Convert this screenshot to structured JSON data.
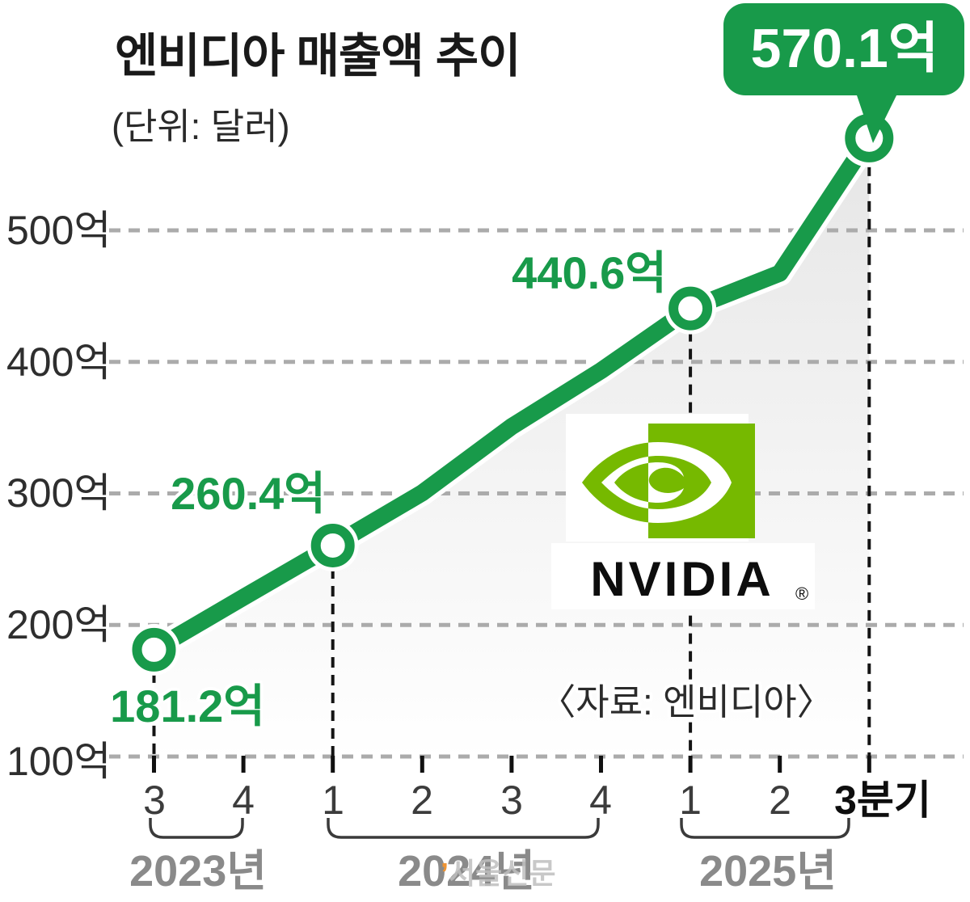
{
  "header": {
    "title": "엔비디아 매출액 추이",
    "unit_note": "(단위: 달러)"
  },
  "source_note": "〈자료: 엔비디아〉",
  "watermark": {
    "tick": "’",
    "text": "서울신문"
  },
  "logo": {
    "wordmark": "NVIDIA",
    "registered": "®"
  },
  "colors": {
    "line_green": "#189a4a",
    "nvidia_green": "#76b900",
    "grid_gray": "#ababab",
    "area_fill_top": "#e6e6e6",
    "year_label_gray": "#8a8a8a"
  },
  "chart_data": {
    "type": "line",
    "title": "엔비디아 매출액 추이",
    "unit": "억 달러",
    "x_labels": [
      "3",
      "4",
      "1",
      "2",
      "3",
      "4",
      "1",
      "2",
      "3분기"
    ],
    "x_quarters": [
      "2023 Q3",
      "2023 Q4",
      "2024 Q1",
      "2024 Q2",
      "2024 Q3",
      "2024 Q4",
      "2025 Q1",
      "2025 Q2",
      "2025 Q3"
    ],
    "year_groups": [
      {
        "label": "2023년",
        "quarters": [
          "3",
          "4"
        ]
      },
      {
        "label": "2024년",
        "quarters": [
          "1",
          "2",
          "3",
          "4"
        ]
      },
      {
        "label": "2025년",
        "quarters": [
          "1",
          "2",
          "3"
        ]
      }
    ],
    "series": [
      {
        "name": "매출액",
        "values": [
          181.2,
          221.0,
          260.4,
          300.4,
          350.8,
          393.3,
          440.6,
          467.4,
          570.1
        ]
      }
    ],
    "labeled_points": [
      {
        "index": 0,
        "label": "181.2억",
        "value": 181.2
      },
      {
        "index": 2,
        "label": "260.4억",
        "value": 260.4
      },
      {
        "index": 6,
        "label": "440.6억",
        "value": 440.6
      },
      {
        "index": 8,
        "label": "570.1억",
        "value": 570.1,
        "style": "callout-badge"
      }
    ],
    "note": "unlabeled intermediate values estimated from line position",
    "y_tick_labels": [
      "100억",
      "200억",
      "300억",
      "400억",
      "500억"
    ],
    "ylim": [
      100,
      600
    ],
    "legend": "none",
    "grid": "horizontal-dashed"
  }
}
